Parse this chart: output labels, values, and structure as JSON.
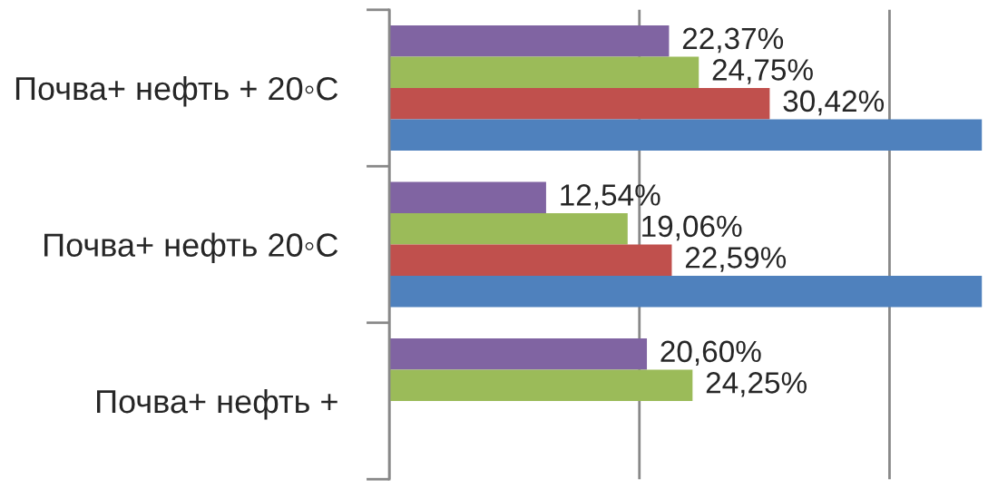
{
  "chart_data": {
    "type": "bar",
    "orientation": "horizontal",
    "categories": [
      "Почва+ нефть + 20◦C",
      "Почва+ нефть 20◦C",
      "Почва+ нефть +"
    ],
    "series": [
      {
        "color": "#8064a2",
        "values": [
          22.37,
          12.54,
          20.6
        ],
        "value_labels": [
          "22,37%",
          "12,54%",
          "20,60%"
        ]
      },
      {
        "color": "#9bbb59",
        "values": [
          24.75,
          19.06,
          24.25
        ],
        "value_labels": [
          "24,75%",
          "19,06%",
          "24,25%"
        ]
      },
      {
        "color": "#c0504d",
        "values": [
          30.42,
          22.59,
          null
        ],
        "value_labels": [
          "30,42%",
          "22,59%",
          null
        ]
      },
      {
        "color": "#4f81bd",
        "values": [
          47.4,
          47.4,
          null
        ],
        "value_labels": [
          null,
          null,
          null
        ]
      }
    ],
    "xlim": [
      0,
      47.4
    ],
    "xticks": [
      {
        "value": 0,
        "label": null
      },
      {
        "value": 20,
        "label": null
      },
      {
        "value": 40,
        "label": null
      }
    ],
    "grid": "x",
    "tick_labels": "y"
  }
}
